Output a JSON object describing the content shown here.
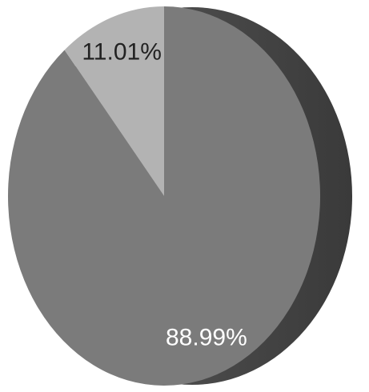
{
  "chart_data": {
    "type": "pie",
    "values": [
      88.99,
      11.01
    ],
    "value_labels": [
      "88.99%",
      "11.01%"
    ],
    "colors": [
      "#7b7b7b",
      "#b3b3b3"
    ]
  }
}
